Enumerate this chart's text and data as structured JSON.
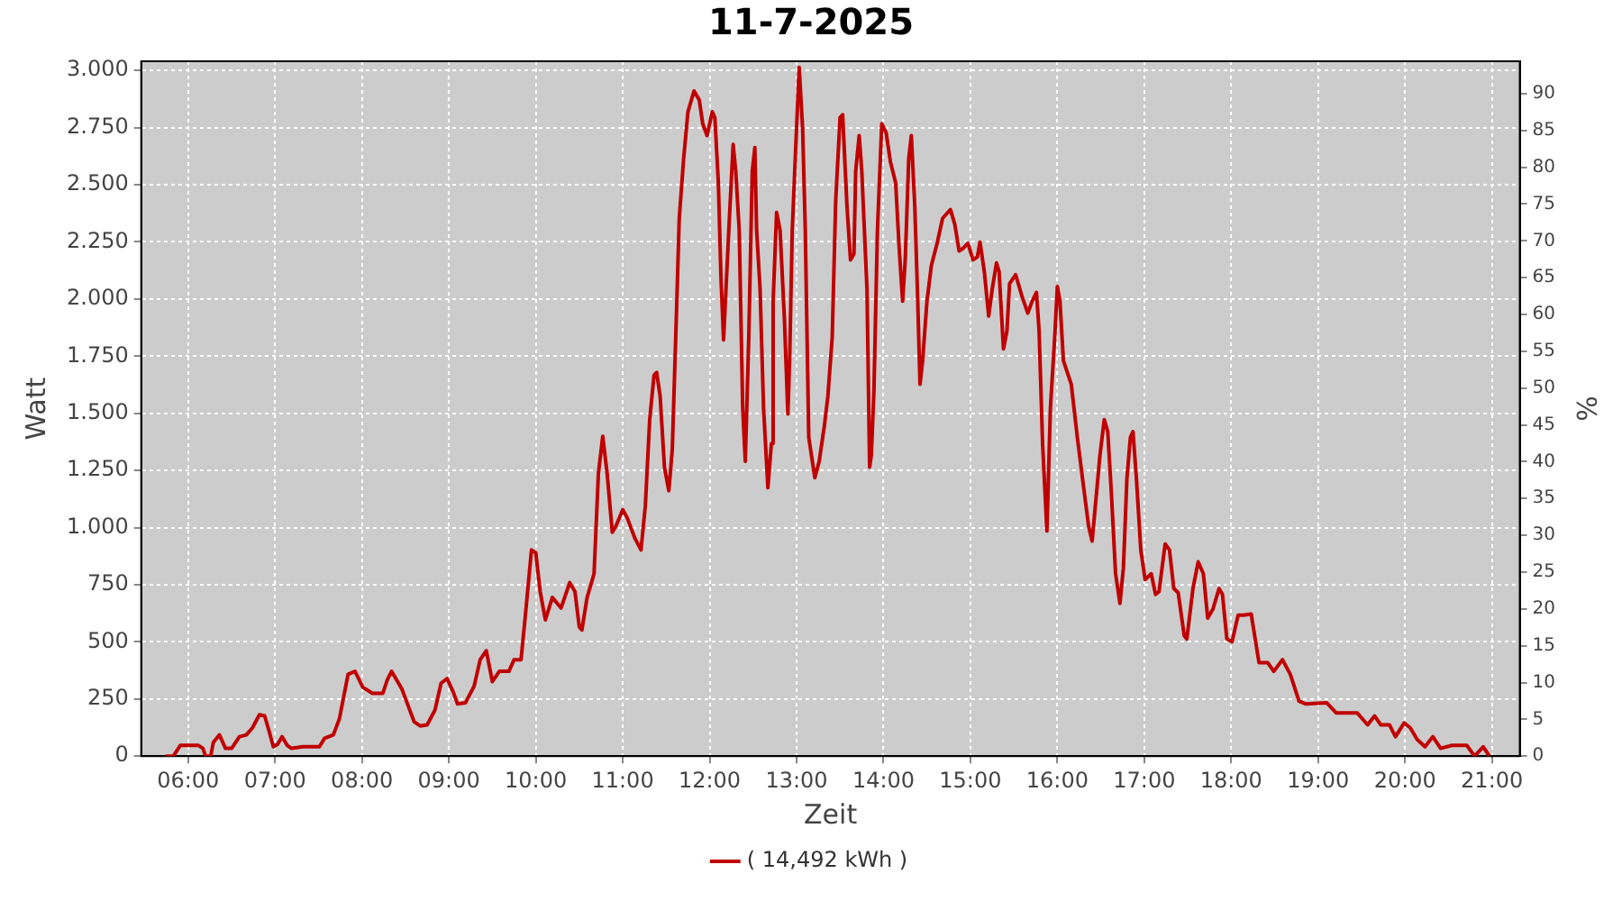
{
  "chart_data": {
    "type": "line",
    "title": "11-7-2025",
    "xlabel": "Zeit",
    "ylabel": "Watt",
    "y2label": "%",
    "xlim": [
      5.46,
      21.32
    ],
    "xticks": [
      {
        "value": 6,
        "label": "06:00"
      },
      {
        "value": 7,
        "label": "07:00"
      },
      {
        "value": 8,
        "label": "08:00"
      },
      {
        "value": 9,
        "label": "09:00"
      },
      {
        "value": 10,
        "label": "10:00"
      },
      {
        "value": 11,
        "label": "11:00"
      },
      {
        "value": 12,
        "label": "12:00"
      },
      {
        "value": 13,
        "label": "13:00"
      },
      {
        "value": 14,
        "label": "14:00"
      },
      {
        "value": 15,
        "label": "15:00"
      },
      {
        "value": 16,
        "label": "16:00"
      },
      {
        "value": 17,
        "label": "17:00"
      },
      {
        "value": 18,
        "label": "18:00"
      },
      {
        "value": 19,
        "label": "19:00"
      },
      {
        "value": 20,
        "label": "20:00"
      },
      {
        "value": 21,
        "label": "21:00"
      }
    ],
    "ylim": [
      0,
      3040
    ],
    "yticks": [
      0,
      250,
      500,
      750,
      {
        "value": 1000,
        "label": "1.000"
      },
      {
        "value": 1250,
        "label": "1.250"
      },
      {
        "value": 1500,
        "label": "1.500"
      },
      {
        "value": 1750,
        "label": "1.750"
      },
      {
        "value": 2000,
        "label": "2.000"
      },
      {
        "value": 2250,
        "label": "2.250"
      },
      {
        "value": 2500,
        "label": "2.500"
      },
      {
        "value": 2750,
        "label": "2.750"
      },
      {
        "value": 3000,
        "label": "3.000"
      }
    ],
    "y2lim": [
      0,
      94.4
    ],
    "y2ticks": [
      0,
      5,
      10,
      15,
      20,
      25,
      30,
      35,
      40,
      45,
      50,
      55,
      60,
      65,
      70,
      75,
      80,
      85,
      90
    ],
    "grid": true,
    "legend": "bottom",
    "marker": "none",
    "line_style": "solid",
    "series": [
      {
        "name": "( 14,492 kWh )",
        "color": "#c00000",
        "x": [
          5.74,
          5.83,
          5.91,
          6.01,
          6.12,
          6.17,
          6.2,
          6.26,
          6.29,
          6.36,
          6.43,
          6.5,
          6.59,
          6.67,
          6.74,
          6.82,
          6.88,
          6.93,
          6.98,
          7.03,
          7.08,
          7.14,
          7.19,
          7.32,
          7.51,
          7.57,
          7.67,
          7.74,
          7.84,
          7.92,
          8.01,
          8.12,
          8.24,
          8.29,
          8.34,
          8.46,
          8.6,
          8.67,
          8.75,
          8.84,
          8.91,
          8.98,
          9.05,
          9.1,
          9.19,
          9.29,
          9.36,
          9.43,
          9.5,
          9.58,
          9.69,
          9.75,
          9.83,
          9.88,
          9.95,
          10.0,
          10.05,
          10.11,
          10.19,
          10.29,
          10.39,
          10.45,
          10.5,
          10.53,
          10.59,
          10.67,
          10.72,
          10.77,
          10.82,
          10.88,
          10.92,
          11.0,
          11.05,
          11.14,
          11.21,
          11.26,
          11.31,
          11.36,
          11.39,
          11.43,
          11.48,
          11.53,
          11.57,
          11.62,
          11.65,
          11.7,
          11.75,
          11.82,
          11.88,
          11.92,
          11.97,
          12.03,
          12.06,
          12.1,
          12.13,
          12.16,
          12.22,
          12.27,
          12.3,
          12.34,
          12.38,
          12.41,
          12.45,
          12.49,
          12.52,
          12.54,
          12.58,
          12.62,
          12.67,
          12.71,
          12.73,
          12.77,
          12.81,
          12.86,
          12.9,
          12.92,
          12.95,
          12.99,
          13.03,
          13.07,
          13.1,
          13.14,
          13.21,
          13.26,
          13.32,
          13.36,
          13.41,
          13.45,
          13.5,
          13.53,
          13.58,
          13.62,
          13.66,
          13.68,
          13.72,
          13.75,
          13.81,
          13.84,
          13.86,
          13.89,
          13.93,
          13.98,
          14.03,
          14.08,
          14.14,
          14.18,
          14.22,
          14.25,
          14.29,
          14.32,
          14.36,
          14.39,
          14.42,
          14.45,
          14.5,
          14.55,
          14.62,
          14.68,
          14.77,
          14.82,
          14.87,
          14.92,
          14.97,
          15.03,
          15.08,
          15.11,
          15.16,
          15.21,
          15.25,
          15.3,
          15.33,
          15.38,
          15.42,
          15.45,
          15.52,
          15.59,
          15.66,
          15.71,
          15.76,
          15.79,
          15.83,
          15.88,
          15.92,
          15.97,
          16.0,
          16.03,
          16.07,
          16.16,
          16.23,
          16.29,
          16.36,
          16.4,
          16.45,
          16.49,
          16.54,
          16.58,
          16.62,
          16.67,
          16.72,
          16.76,
          16.8,
          16.84,
          16.87,
          16.91,
          16.96,
          17.01,
          17.08,
          17.13,
          17.17,
          17.24,
          17.29,
          17.34,
          17.39,
          17.46,
          17.49,
          17.56,
          17.62,
          17.68,
          17.73,
          17.79,
          17.86,
          17.9,
          17.95,
          18.01,
          18.08,
          18.14,
          18.23,
          18.32,
          18.42,
          18.49,
          18.59,
          18.68,
          18.78,
          18.86,
          19.1,
          19.21,
          19.45,
          19.57,
          19.65,
          19.72,
          19.82,
          19.89,
          19.99,
          20.06,
          20.14,
          20.23,
          20.32,
          20.41,
          20.54,
          20.71,
          20.8,
          20.9,
          20.97
        ],
        "values": [
          0,
          0,
          47,
          47,
          47,
          34,
          0,
          0,
          60,
          93,
          34,
          34,
          85,
          93,
          124,
          181,
          176,
          111,
          41,
          52,
          85,
          47,
          34,
          41,
          41,
          78,
          93,
          163,
          358,
          371,
          301,
          275,
          275,
          332,
          371,
          293,
          150,
          132,
          137,
          202,
          319,
          339,
          280,
          228,
          233,
          306,
          422,
          461,
          326,
          371,
          371,
          422,
          422,
          617,
          902,
          889,
          720,
          596,
          694,
          648,
          759,
          720,
          565,
          552,
          694,
          798,
          1238,
          1399,
          1238,
          979,
          1005,
          1078,
          1044,
          953,
          902,
          1096,
          1472,
          1666,
          1679,
          1575,
          1264,
          1161,
          1342,
          1964,
          2353,
          2612,
          2819,
          2910,
          2871,
          2767,
          2715,
          2819,
          2793,
          2508,
          2093,
          1821,
          2301,
          2676,
          2560,
          2301,
          1523,
          1290,
          1834,
          2560,
          2663,
          2301,
          2042,
          1523,
          1174,
          1368,
          1990,
          2379,
          2301,
          1912,
          1497,
          1730,
          2301,
          2663,
          3013,
          2741,
          2301,
          1394,
          1218,
          1290,
          1446,
          1575,
          1834,
          2430,
          2793,
          2806,
          2404,
          2171,
          2197,
          2560,
          2715,
          2560,
          2042,
          1264,
          1316,
          1601,
          2301,
          2767,
          2728,
          2599,
          2508,
          2223,
          1990,
          2171,
          2612,
          2715,
          2404,
          2042,
          1627,
          1730,
          1990,
          2145,
          2249,
          2353,
          2391,
          2327,
          2210,
          2223,
          2244,
          2171,
          2184,
          2249,
          2119,
          1925,
          2042,
          2158,
          2119,
          1782,
          1860,
          2067,
          2106,
          2016,
          1938,
          1990,
          2029,
          1860,
          1368,
          985,
          1523,
          1834,
          2055,
          1990,
          1730,
          1627,
          1394,
          1213,
          1005,
          941,
          1148,
          1316,
          1472,
          1420,
          1161,
          798,
          668,
          824,
          1213,
          1394,
          1420,
          1213,
          902,
          772,
          798,
          707,
          720,
          928,
          902,
          733,
          715,
          526,
          513,
          733,
          850,
          798,
          604,
          643,
          733,
          707,
          513,
          500,
          617,
          617,
          622,
          409,
          409,
          371,
          422,
          358,
          241,
          228,
          233,
          189,
          189,
          137,
          176,
          137,
          137,
          85,
          145,
          124,
          73,
          41,
          85,
          34,
          47,
          47,
          0,
          41,
          0
        ]
      }
    ]
  }
}
